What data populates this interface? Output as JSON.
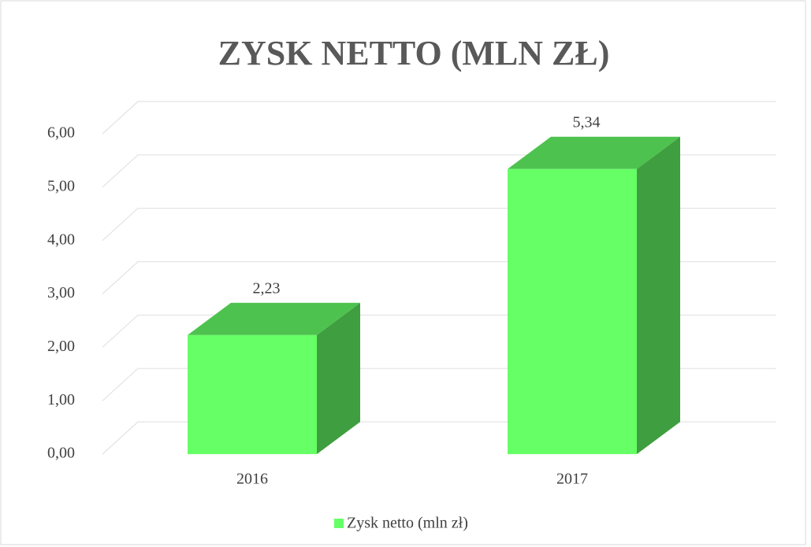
{
  "chart_data": {
    "type": "bar3d",
    "title": "ZYSK NETTO (MLN ZŁ)",
    "categories": [
      "2016",
      "2017"
    ],
    "series": [
      {
        "name": "Zysk netto (mln zł)",
        "color": "#66ff66",
        "values": [
          2.23,
          5.34
        ],
        "value_labels": [
          "2,23",
          "5,34"
        ]
      }
    ],
    "ylim": [
      0,
      6
    ],
    "yticks": [
      {
        "value": 0,
        "label": "0,00"
      },
      {
        "value": 1,
        "label": "1,00"
      },
      {
        "value": 2,
        "label": "2,00"
      },
      {
        "value": 3,
        "label": "3,00"
      },
      {
        "value": 4,
        "label": "4,00"
      },
      {
        "value": 5,
        "label": "5,00"
      },
      {
        "value": 6,
        "label": "6,00"
      }
    ],
    "grid": true,
    "legend": "bottom"
  }
}
